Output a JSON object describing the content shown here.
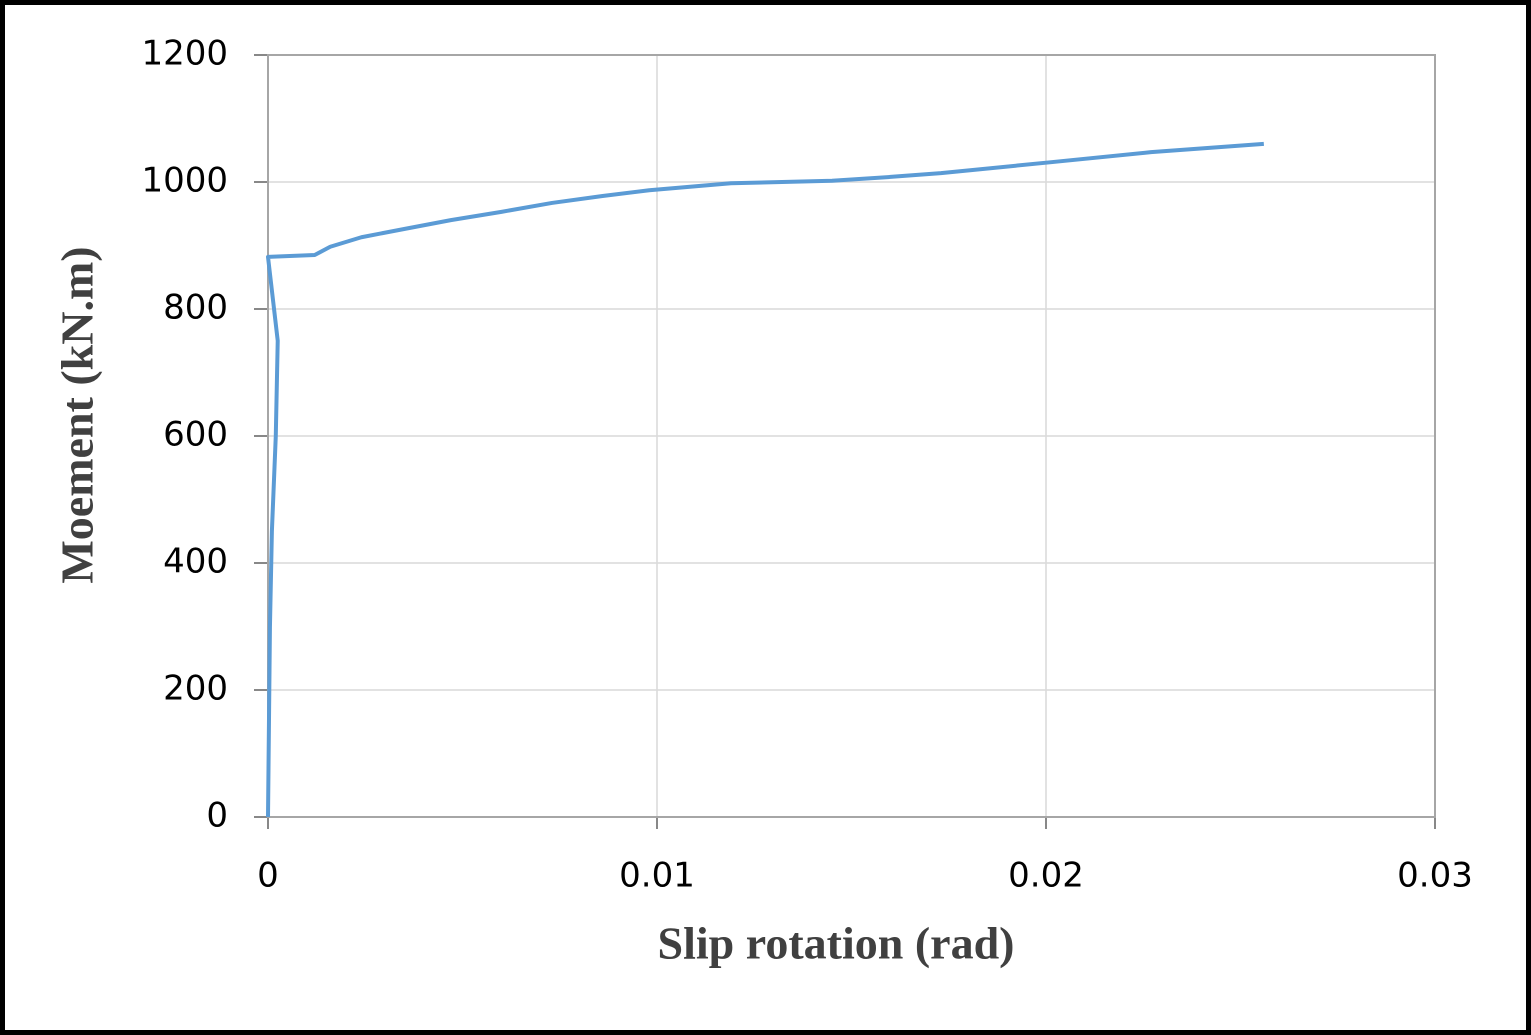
{
  "chart_data": {
    "type": "line",
    "x_label": "Slip rotation (rad)",
    "y_label": "Moement (kN.m)",
    "x": [
      0,
      5e-05,
      0.0001,
      0.0002,
      0.00025,
      0,
      0.0012,
      0.0016,
      0.0024,
      0.0035,
      0.0047,
      0.006,
      0.0073,
      0.0086,
      0.0098,
      0.0119,
      0.0145,
      0.016,
      0.0173,
      0.0201,
      0.0227,
      0.0256
    ],
    "series": [
      {
        "color": "#5b9bd5",
        "values": [
          0,
          300,
          450,
          600,
          750,
          882,
          885,
          898,
          913,
          926,
          940,
          953,
          967,
          978,
          987,
          998,
          1002,
          1008,
          1014,
          1031,
          1047,
          1060
        ]
      }
    ],
    "xlim": [
      0,
      0.03
    ],
    "xticks": [
      0,
      0.01,
      0.02,
      0.03
    ],
    "ylim": [
      0,
      1200
    ],
    "yticks": [
      0,
      200,
      400,
      600,
      800,
      1000,
      1200
    ],
    "grid": true
  }
}
